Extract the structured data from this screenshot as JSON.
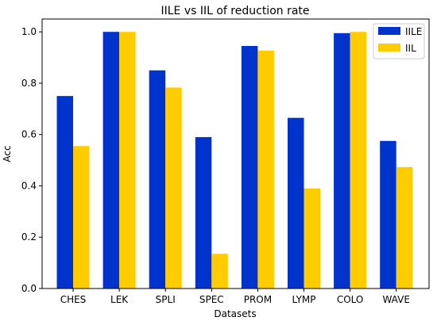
{
  "chart_data": {
    "type": "bar",
    "title": "IILE vs IIL of reduction rate",
    "xlabel": "Datasets",
    "ylabel": "Acc",
    "categories": [
      "CHES",
      "LEK",
      "SPLI",
      "SPEC",
      "PROM",
      "LYMP",
      "COLO",
      "WAVE"
    ],
    "series": [
      {
        "name": "IILE",
        "color": "#0033CC",
        "values": [
          0.75,
          1.0,
          0.85,
          0.59,
          0.945,
          0.665,
          0.995,
          0.575
        ]
      },
      {
        "name": "IIL",
        "color": "#FFCC00",
        "values": [
          0.555,
          1.0,
          0.783,
          0.135,
          0.927,
          0.39,
          1.0,
          0.473
        ]
      }
    ],
    "ylim": [
      0,
      1.0
    ],
    "yticks": [
      "0.0",
      "0.2",
      "0.4",
      "0.6",
      "0.8",
      "1.0"
    ],
    "grid": false,
    "legend_position": "top-right"
  }
}
